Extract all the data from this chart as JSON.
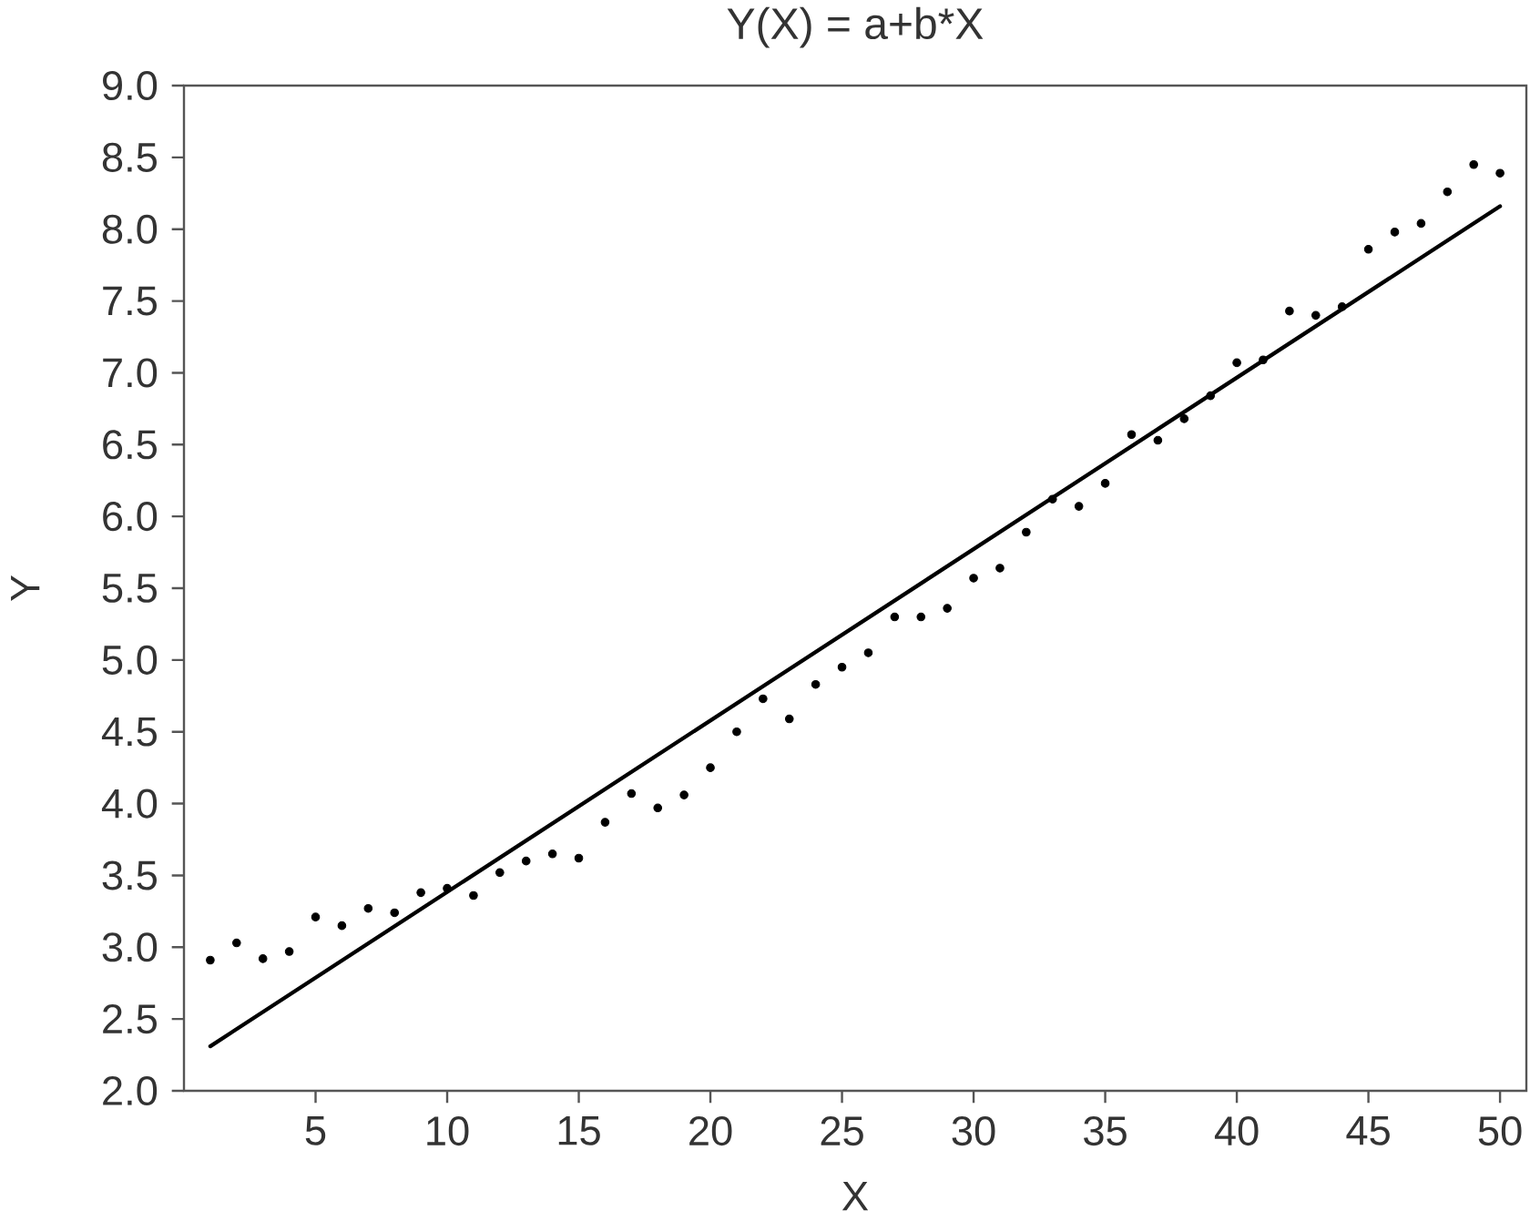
{
  "chart_data": {
    "type": "scatter",
    "title": "Y(X) = a+b*X",
    "xlabel": "X",
    "ylabel": "Y",
    "xlim": [
      0,
      51
    ],
    "ylim": [
      2,
      9
    ],
    "xticks": [
      5,
      10,
      15,
      20,
      25,
      30,
      35,
      40,
      45,
      50
    ],
    "yticks": [
      {
        "value": 2,
        "label": "2.0"
      },
      {
        "value": 2.5,
        "label": "2.5"
      },
      {
        "value": 3,
        "label": "3.0"
      },
      {
        "value": 3.5,
        "label": "3.5"
      },
      {
        "value": 4,
        "label": "4.0"
      },
      {
        "value": 4.5,
        "label": "4.5"
      },
      {
        "value": 5,
        "label": "5.0"
      },
      {
        "value": 5.5,
        "label": "5.5"
      },
      {
        "value": 6,
        "label": "6.0"
      },
      {
        "value": 6.5,
        "label": "6.5"
      },
      {
        "value": 7,
        "label": "7.0"
      },
      {
        "value": 7.5,
        "label": "7.5"
      },
      {
        "value": 8,
        "label": "8.0"
      },
      {
        "value": 8.5,
        "label": "8.5"
      },
      {
        "value": 9,
        "label": "9.0"
      }
    ],
    "grid": false,
    "series": [
      {
        "color": "#000000",
        "marker": "circle",
        "x": [
          1,
          2,
          3,
          4,
          5,
          6,
          7,
          8,
          9,
          10,
          11,
          12,
          13,
          14,
          15,
          16,
          17,
          18,
          19,
          20,
          21,
          22,
          23,
          24,
          25,
          26,
          27,
          28,
          29,
          30,
          31,
          32,
          33,
          34,
          35,
          36,
          37,
          38,
          39,
          40,
          41,
          42,
          43,
          44,
          45,
          46,
          47,
          48,
          49,
          50
        ],
        "values": [
          2.91,
          3.03,
          2.92,
          2.97,
          3.21,
          3.15,
          3.27,
          3.24,
          3.38,
          3.41,
          3.36,
          3.52,
          3.6,
          3.65,
          3.62,
          3.87,
          4.07,
          3.97,
          4.06,
          4.25,
          4.5,
          4.73,
          4.59,
          4.83,
          4.95,
          5.05,
          5.3,
          5.3,
          5.36,
          5.57,
          5.64,
          5.89,
          6.12,
          6.07,
          6.23,
          6.57,
          6.53,
          6.68,
          6.84,
          7.07,
          7.09,
          7.43,
          7.4,
          7.46,
          7.86,
          7.98,
          8.04,
          8.26,
          8.45,
          8.39
        ]
      },
      {
        "type": "line",
        "color": "#000000",
        "marker": "none",
        "line_style": "solid",
        "x": [
          1,
          50
        ],
        "values": [
          2.31,
          8.16
        ]
      }
    ]
  }
}
